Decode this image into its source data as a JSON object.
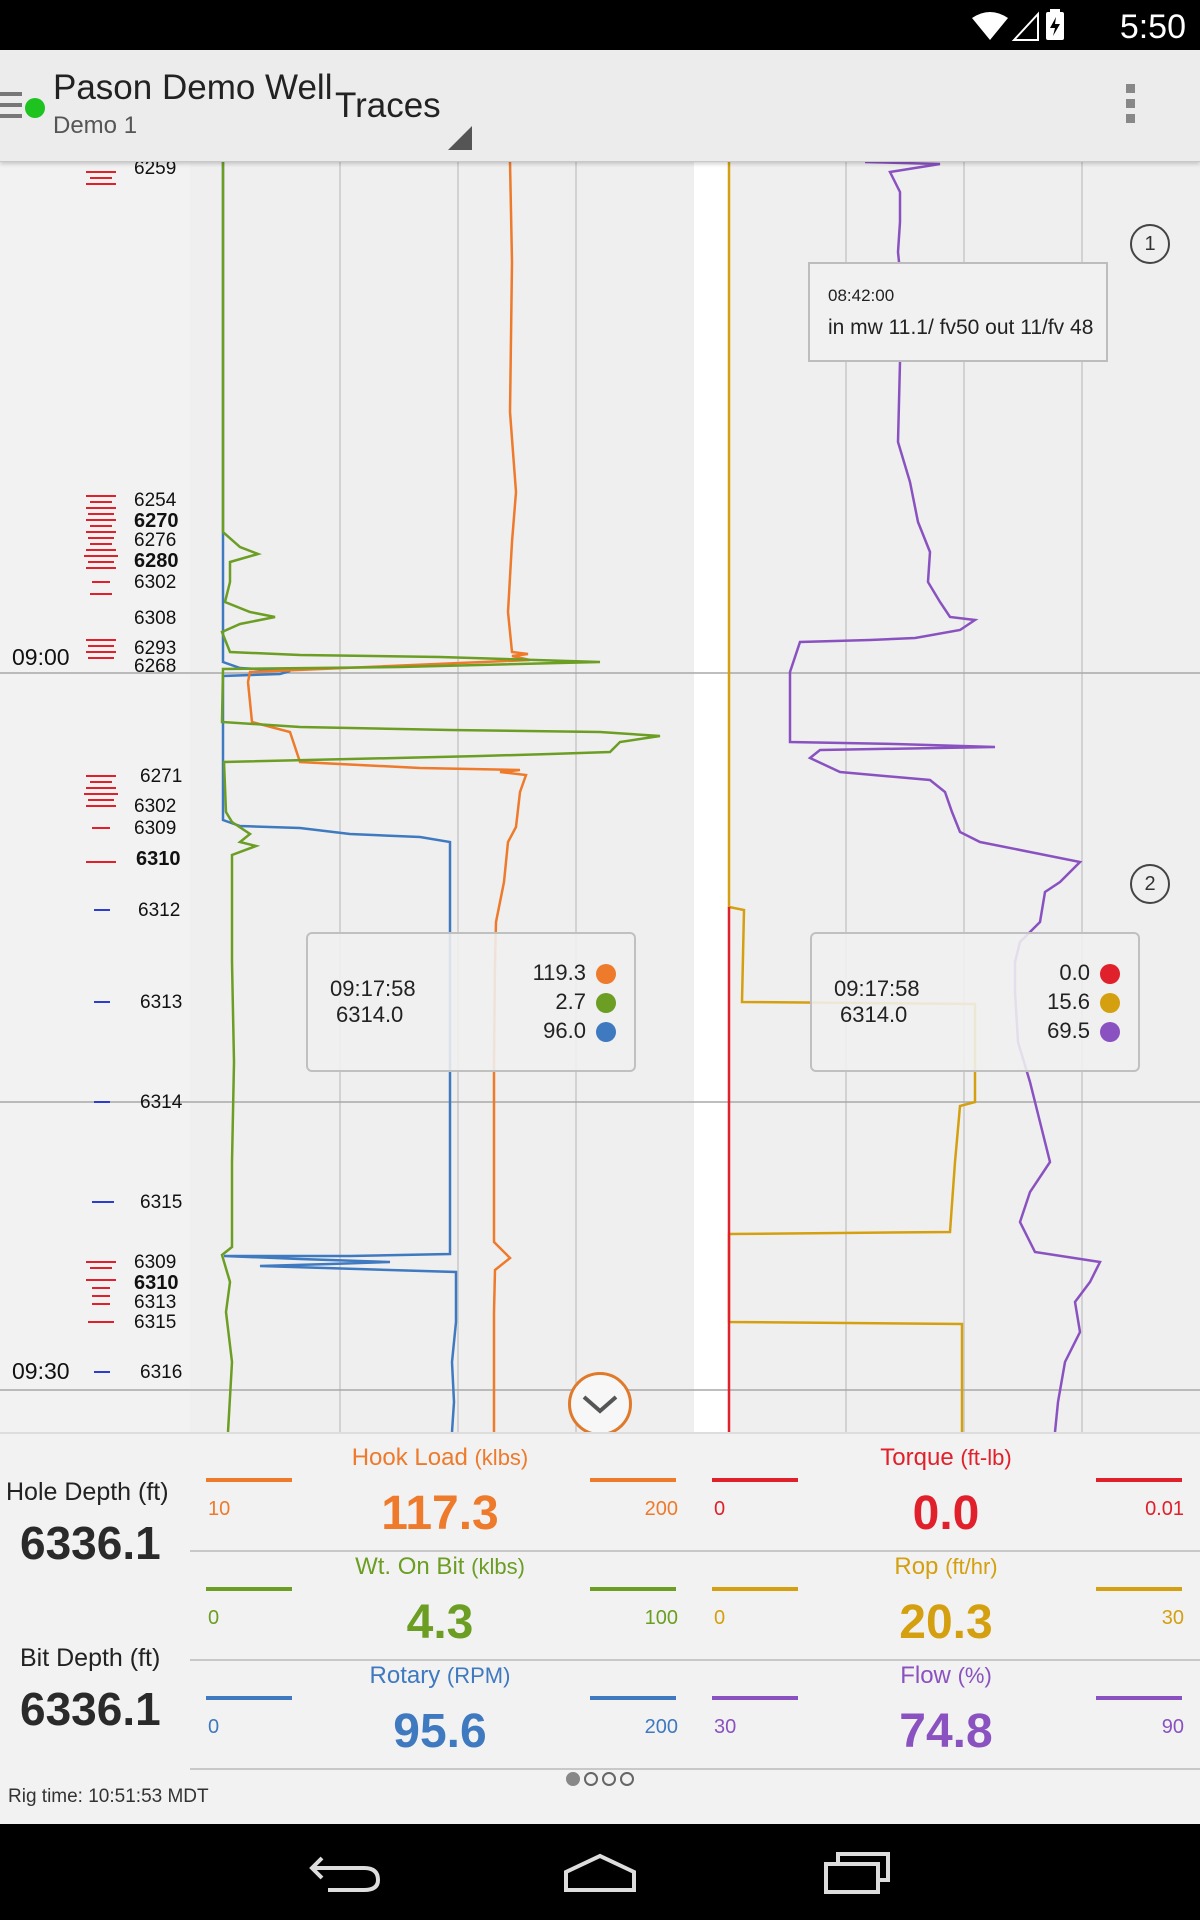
{
  "status_bar": {
    "time": "5:50",
    "icons": [
      "wifi-icon",
      "signal-icon",
      "battery-charging-icon"
    ]
  },
  "app_bar": {
    "well_name": "Pason Demo Well",
    "well_sub": "Demo 1",
    "view_select": "Traces",
    "connection_color": "#1fc31f"
  },
  "depth_labels": [
    {
      "text": "6259",
      "bold": false
    },
    {
      "text": "6254",
      "bold": false
    },
    {
      "text": "6270",
      "bold": true
    },
    {
      "text": "6276",
      "bold": false
    },
    {
      "text": "6280",
      "bold": true
    },
    {
      "text": "6302",
      "bold": false
    },
    {
      "text": "6308",
      "bold": false
    },
    {
      "text": "6293",
      "bold": false
    },
    {
      "text": "6268",
      "bold": false
    },
    {
      "text": "6271",
      "bold": false
    },
    {
      "text": "6302",
      "bold": false
    },
    {
      "text": "6309",
      "bold": false
    },
    {
      "text": "6310",
      "bold": true
    },
    {
      "text": "6312",
      "bold": false
    },
    {
      "text": "6313",
      "bold": false
    },
    {
      "text": "6314",
      "bold": false
    },
    {
      "text": "6315",
      "bold": false
    },
    {
      "text": "6309",
      "bold": false
    },
    {
      "text": "6310",
      "bold": true
    },
    {
      "text": "6313",
      "bold": false
    },
    {
      "text": "6315",
      "bold": false
    },
    {
      "text": "6316",
      "bold": false
    }
  ],
  "time_labels": [
    "09:00",
    "09:30"
  ],
  "annotation": {
    "time": "08:42:00",
    "text": "in mw 11.1/ fv50 out 11/fv 48",
    "markers": [
      "1",
      "2"
    ]
  },
  "readout_left": {
    "time": "09:17:58",
    "depth": "6314.0",
    "values": [
      {
        "value": "119.3",
        "color": "#ee7a2b"
      },
      {
        "value": "2.7",
        "color": "#6b9e22"
      },
      {
        "value": "96.0",
        "color": "#3f79c0"
      }
    ]
  },
  "readout_right": {
    "time": "09:17:58",
    "depth": "6314.0",
    "values": [
      {
        "value": "0.0",
        "color": "#e0202a"
      },
      {
        "value": "15.6",
        "color": "#d4a010"
      },
      {
        "value": "69.5",
        "color": "#8a52c0"
      }
    ]
  },
  "depths": {
    "hole_label": "Hole Depth (ft)",
    "hole_value": "6336.1",
    "bit_label": "Bit Depth (ft)",
    "bit_value": "6336.1"
  },
  "metrics": [
    {
      "name": "Hook Load",
      "unit": "(klbs)",
      "value": "117.3",
      "min": "10",
      "max": "200",
      "color": "#ee7a2b"
    },
    {
      "name": "Torque",
      "unit": "(ft-lb)",
      "value": "0.0",
      "min": "0",
      "max": "0.01",
      "color": "#e0202a"
    },
    {
      "name": "Wt. On Bit",
      "unit": "(klbs)",
      "value": "4.3",
      "min": "0",
      "max": "100",
      "color": "#6b9e22"
    },
    {
      "name": "Rop",
      "unit": "(ft/hr)",
      "value": "20.3",
      "min": "0",
      "max": "30",
      "color": "#d4a010"
    },
    {
      "name": "Rotary",
      "unit": "(RPM)",
      "value": "95.6",
      "min": "0",
      "max": "200",
      "color": "#3f79c0"
    },
    {
      "name": "Flow",
      "unit": "(%)",
      "value": "74.8",
      "min": "30",
      "max": "90",
      "color": "#8a52c0"
    }
  ],
  "footer": {
    "rig_time": "Rig time: 10:51:53 MDT",
    "pages": 4,
    "active_page": 1
  },
  "nav": [
    "back-icon",
    "home-icon",
    "recents-icon"
  ]
}
